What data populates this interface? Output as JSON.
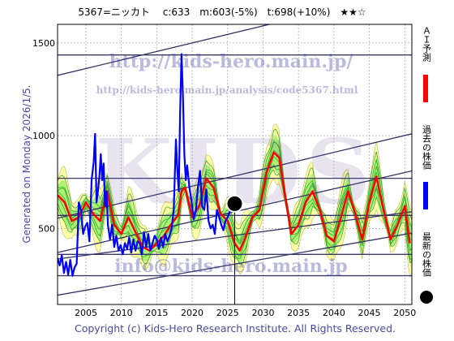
{
  "header": {
    "title": "5367=ニッカト　 c:633　m:603(-5%)　t:698(+10%)　★★☆"
  },
  "side_note": "Generated on Monday 2026/1/5.",
  "footer": "Copyright (c) Kids-Hero Research Institute. All Rights Reserved.",
  "watermarks": {
    "url_main": "http://kids-hero.main.jp/",
    "url_analysis": "http://kids-hero.main.jp/analysis/code5367.html",
    "big": "KIDS",
    "email": "info@kids-hero.main.jp"
  },
  "legend": [
    {
      "label": "ＡＩ予測",
      "color": "#ff0000",
      "kind": "line"
    },
    {
      "label": "過去の株価",
      "color": "#0000ff",
      "kind": "line"
    },
    {
      "label": "最新の株価",
      "color": "#000000",
      "kind": "dot"
    }
  ],
  "colors": {
    "band_outer": "#ffff99",
    "band_inner": "#99ee66",
    "band_line": "#33aa33",
    "trend": "#333366",
    "hline": "#3a3a66",
    "grid": "#9a9a9a"
  },
  "chart_data": {
    "type": "line",
    "xlim": [
      2001,
      2051
    ],
    "ylim": [
      90,
      1600
    ],
    "xticks": [
      2005,
      2010,
      2015,
      2020,
      2025,
      2030,
      2035,
      2040,
      2045,
      2050
    ],
    "yticks": [
      500,
      1000,
      1500
    ],
    "grid": true,
    "latest": {
      "x": 2026.0,
      "y": 633
    },
    "current_year": 2026.0,
    "horizontal_levels": [
      1435,
      770,
      570,
      360,
      245
    ],
    "trend_lines": [
      {
        "x": [
          2001,
          2051
        ],
        "y": [
          1325,
          1785
        ]
      },
      {
        "x": [
          2001,
          2051
        ],
        "y": [
          555,
          1010
        ]
      },
      {
        "x": [
          2001,
          2051
        ],
        "y": [
          370,
          810
        ]
      },
      {
        "x": [
          2001,
          2051
        ],
        "y": [
          335,
          590
        ]
      },
      {
        "x": [
          2001,
          2051
        ],
        "y": [
          140,
          475
        ]
      }
    ],
    "series": [
      {
        "name": "過去の株価",
        "x": [
          2001.0,
          2001.3,
          2001.6,
          2001.9,
          2002.2,
          2002.5,
          2002.8,
          2003.1,
          2003.4,
          2003.7,
          2004.0,
          2004.3,
          2004.6,
          2004.9,
          2005.2,
          2005.5,
          2005.8,
          2006.1,
          2006.3,
          2006.5,
          2006.7,
          2006.9,
          2007.1,
          2007.3,
          2007.5,
          2007.7,
          2007.9,
          2008.1,
          2008.4,
          2008.7,
          2009.0,
          2009.3,
          2009.6,
          2009.9,
          2010.2,
          2010.5,
          2010.8,
          2011.1,
          2011.4,
          2011.7,
          2012.0,
          2012.3,
          2012.6,
          2012.9,
          2013.2,
          2013.5,
          2013.8,
          2014.1,
          2014.4,
          2014.7,
          2015.0,
          2015.3,
          2015.6,
          2015.9,
          2016.2,
          2016.5,
          2016.8,
          2017.1,
          2017.4,
          2017.7,
          2017.9,
          2018.1,
          2018.3,
          2018.5,
          2018.7,
          2018.9,
          2019.1,
          2019.3,
          2019.6,
          2019.9,
          2020.2,
          2020.5,
          2020.8,
          2021.1,
          2021.4,
          2021.7,
          2022.0,
          2022.3,
          2022.6,
          2022.9,
          2023.2,
          2023.5,
          2023.8,
          2024.1,
          2024.4,
          2024.7,
          2025.0,
          2025.3,
          2025.6,
          2025.9,
          2026.0
        ],
        "y": [
          340,
          300,
          355,
          260,
          320,
          250,
          330,
          245,
          290,
          310,
          640,
          600,
          470,
          510,
          530,
          430,
          760,
          860,
          1010,
          640,
          700,
          780,
          900,
          760,
          850,
          620,
          700,
          520,
          440,
          520,
          400,
          460,
          380,
          410,
          360,
          420,
          390,
          450,
          370,
          440,
          380,
          430,
          420,
          360,
          480,
          400,
          470,
          380,
          420,
          460,
          440,
          390,
          450,
          400,
          470,
          430,
          460,
          500,
          600,
          980,
          820,
          700,
          1130,
          1440,
          1210,
          900,
          760,
          840,
          720,
          650,
          550,
          590,
          720,
          810,
          620,
          600,
          710,
          540,
          500,
          520,
          470,
          600,
          560,
          520,
          490,
          540,
          560,
          590,
          610,
          600,
          633
        ]
      },
      {
        "name": "ＡＩ予測",
        "x": [
          2001.0,
          2002.0,
          2003.0,
          2004.0,
          2005.0,
          2006.0,
          2007.0,
          2008.0,
          2009.0,
          2010.0,
          2011.0,
          2012.0,
          2013.0,
          2014.0,
          2015.0,
          2016.0,
          2017.0,
          2018.0,
          2018.5,
          2019.0,
          2020.0,
          2021.0,
          2022.0,
          2023.0,
          2024.0,
          2025.0,
          2026.0,
          2026.7,
          2027.5,
          2028.5,
          2029.5,
          2030.5,
          2031.5,
          2032.3,
          2033.0,
          2034.0,
          2035.0,
          2036.0,
          2037.0,
          2038.0,
          2039.0,
          2040.0,
          2041.0,
          2042.0,
          2043.0,
          2044.0,
          2045.0,
          2046.0,
          2047.0,
          2048.0,
          2049.0,
          2050.0,
          2050.7
        ],
        "y": [
          680,
          640,
          540,
          560,
          640,
          580,
          540,
          700,
          520,
          470,
          560,
          480,
          400,
          380,
          420,
          460,
          520,
          570,
          700,
          720,
          560,
          620,
          770,
          720,
          580,
          540,
          420,
          380,
          450,
          560,
          600,
          800,
          910,
          880,
          700,
          470,
          520,
          640,
          700,
          600,
          460,
          430,
          560,
          700,
          580,
          440,
          640,
          780,
          600,
          440,
          520,
          620,
          420
        ]
      }
    ]
  }
}
